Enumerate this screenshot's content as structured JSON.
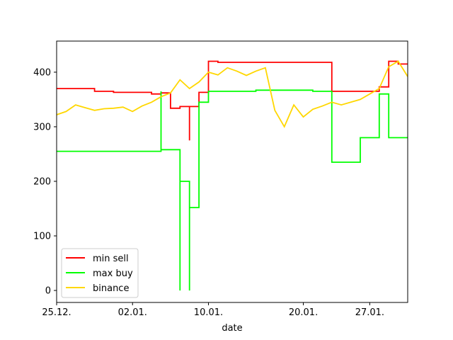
{
  "chart_data": {
    "type": "line",
    "title": "",
    "xlabel": "date",
    "ylabel": "",
    "x_ticks": [
      {
        "date": "2017-12-25",
        "label": "25.12."
      },
      {
        "date": "2018-01-02",
        "label": "02.01."
      },
      {
        "date": "2018-01-10",
        "label": "10.01."
      },
      {
        "date": "2018-01-20",
        "label": "20.01."
      },
      {
        "date": "2018-01-27",
        "label": "27.01."
      }
    ],
    "xlim": [
      "2017-12-25",
      "2018-01-31"
    ],
    "ylim": [
      -22,
      457
    ],
    "y_ticks": [
      {
        "value": 0,
        "label": "0"
      },
      {
        "value": 100,
        "label": "100"
      },
      {
        "value": 200,
        "label": "200"
      },
      {
        "value": 300,
        "label": "300"
      },
      {
        "value": 400,
        "label": "400"
      }
    ],
    "legend_position": "lower-left",
    "grid": false,
    "series": [
      {
        "name": "min sell",
        "color": "#ff0000",
        "step": true,
        "points": [
          [
            "2017-12-25",
            370
          ],
          [
            "2017-12-29",
            370
          ],
          [
            "2017-12-29",
            365
          ],
          [
            "2017-12-31",
            365
          ],
          [
            "2017-12-31",
            363
          ],
          [
            "2018-01-04",
            363
          ],
          [
            "2018-01-04",
            360
          ],
          [
            "2018-01-05",
            360
          ],
          [
            "2018-01-05",
            362
          ],
          [
            "2018-01-06",
            362
          ],
          [
            "2018-01-06",
            334
          ],
          [
            "2018-01-07",
            334
          ],
          [
            "2018-01-07",
            337
          ],
          [
            "2018-01-08",
            337
          ],
          [
            "2018-01-08",
            275
          ],
          [
            "2018-01-08",
            275
          ],
          [
            "2018-01-08",
            337
          ],
          [
            "2018-01-08",
            337
          ],
          [
            "2018-01-08",
            275
          ],
          [
            "2018-01-08",
            275
          ],
          [
            "2018-01-08",
            337
          ],
          [
            "2018-01-09",
            337
          ],
          [
            "2018-01-09",
            340
          ],
          [
            "2018-01-09",
            340
          ],
          [
            "2018-01-09",
            363
          ],
          [
            "2018-01-10",
            363
          ],
          [
            "2018-01-10",
            420
          ],
          [
            "2018-01-11",
            420
          ],
          [
            "2018-01-11",
            418
          ],
          [
            "2018-01-23",
            418
          ],
          [
            "2018-01-23",
            365
          ],
          [
            "2018-01-28",
            365
          ],
          [
            "2018-01-28",
            373
          ],
          [
            "2018-01-29",
            373
          ],
          [
            "2018-01-29",
            420
          ],
          [
            "2018-01-30",
            420
          ],
          [
            "2018-01-30",
            415
          ],
          [
            "2018-01-31",
            415
          ]
        ]
      },
      {
        "name": "max buy",
        "color": "#00ff00",
        "step": true,
        "points": [
          [
            "2017-12-25",
            255
          ],
          [
            "2018-01-05",
            255
          ],
          [
            "2018-01-05",
            365
          ],
          [
            "2018-01-05",
            365
          ],
          [
            "2018-01-05",
            258
          ],
          [
            "2018-01-07",
            258
          ],
          [
            "2018-01-07",
            0
          ],
          [
            "2018-01-07",
            0
          ],
          [
            "2018-01-07",
            200
          ],
          [
            "2018-01-08",
            200
          ],
          [
            "2018-01-08",
            152
          ],
          [
            "2018-01-08",
            152
          ],
          [
            "2018-01-08",
            200
          ],
          [
            "2018-01-08",
            200
          ],
          [
            "2018-01-08",
            0
          ],
          [
            "2018-01-08",
            0
          ],
          [
            "2018-01-08",
            152
          ],
          [
            "2018-01-09",
            152
          ],
          [
            "2018-01-09",
            200
          ],
          [
            "2018-01-09",
            200
          ],
          [
            "2018-01-09",
            345
          ],
          [
            "2018-01-10",
            345
          ],
          [
            "2018-01-10",
            365
          ],
          [
            "2018-01-15",
            365
          ],
          [
            "2018-01-15",
            367
          ],
          [
            "2018-01-21",
            367
          ],
          [
            "2018-01-21",
            365
          ],
          [
            "2018-01-23",
            365
          ],
          [
            "2018-01-23",
            235
          ],
          [
            "2018-01-26",
            235
          ],
          [
            "2018-01-26",
            280
          ],
          [
            "2018-01-28",
            280
          ],
          [
            "2018-01-28",
            360
          ],
          [
            "2018-01-29",
            360
          ],
          [
            "2018-01-29",
            280
          ],
          [
            "2018-01-31",
            280
          ]
        ]
      },
      {
        "name": "binance",
        "color": "#ffd700",
        "step": false,
        "points": [
          [
            "2017-12-25",
            322
          ],
          [
            "2017-12-26",
            328
          ],
          [
            "2017-12-27",
            340
          ],
          [
            "2017-12-28",
            335
          ],
          [
            "2017-12-29",
            330
          ],
          [
            "2017-12-30",
            333
          ],
          [
            "2017-12-31",
            334
          ],
          [
            "2018-01-01",
            336
          ],
          [
            "2018-01-02",
            328
          ],
          [
            "2018-01-03",
            338
          ],
          [
            "2018-01-04",
            345
          ],
          [
            "2018-01-05",
            355
          ],
          [
            "2018-01-06",
            362
          ],
          [
            "2018-01-07",
            386
          ],
          [
            "2018-01-08",
            370
          ],
          [
            "2018-01-09",
            382
          ],
          [
            "2018-01-10",
            400
          ],
          [
            "2018-01-11",
            395
          ],
          [
            "2018-01-12",
            408
          ],
          [
            "2018-01-13",
            402
          ],
          [
            "2018-01-14",
            394
          ],
          [
            "2018-01-15",
            402
          ],
          [
            "2018-01-16",
            408
          ],
          [
            "2018-01-17",
            330
          ],
          [
            "2018-01-18",
            300
          ],
          [
            "2018-01-19",
            340
          ],
          [
            "2018-01-20",
            318
          ],
          [
            "2018-01-21",
            332
          ],
          [
            "2018-01-22",
            338
          ],
          [
            "2018-01-23",
            345
          ],
          [
            "2018-01-24",
            340
          ],
          [
            "2018-01-25",
            345
          ],
          [
            "2018-01-26",
            350
          ],
          [
            "2018-01-27",
            360
          ],
          [
            "2018-01-28",
            370
          ],
          [
            "2018-01-29",
            410
          ],
          [
            "2018-01-30",
            420
          ],
          [
            "2018-01-31",
            392
          ]
        ]
      }
    ]
  }
}
